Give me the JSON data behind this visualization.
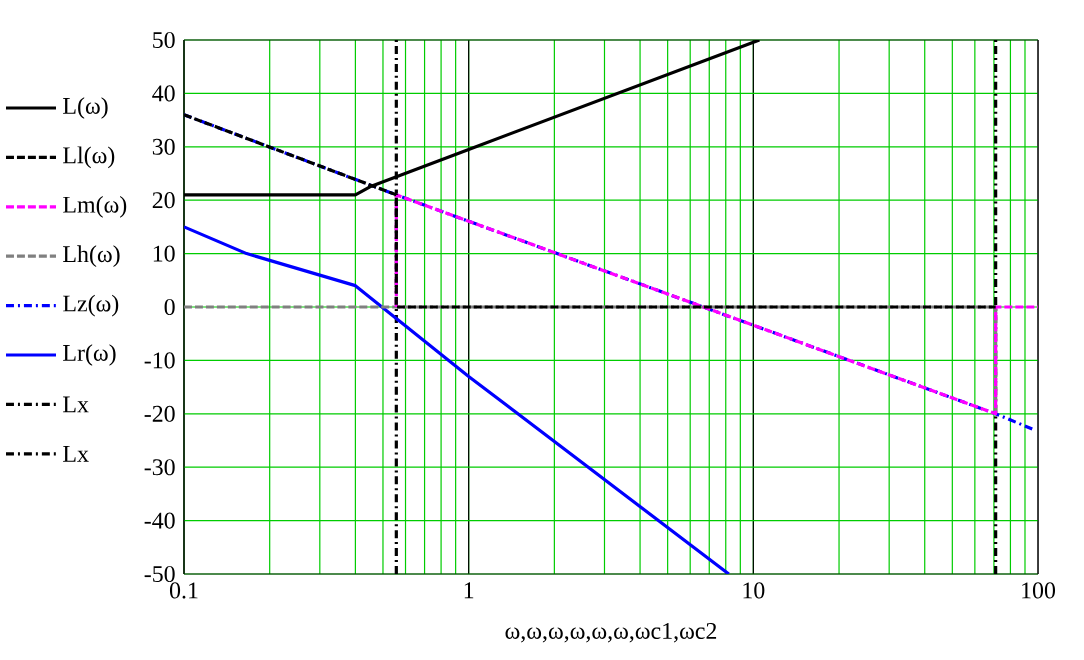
{
  "chart_data": {
    "type": "line",
    "xlabel": "ω,ω,ω,ω,ω,ω,ωc1,ωc2",
    "xlim": [
      0.1,
      100
    ],
    "ylim": [
      -50,
      50
    ],
    "xticks": [
      0.1,
      1,
      10,
      100
    ],
    "yticks": [
      -50,
      -40,
      -30,
      -20,
      -10,
      0,
      10,
      20,
      30,
      40,
      50
    ],
    "log": "x",
    "grid": true,
    "legend": "left",
    "marker": "none",
    "series": [
      {
        "name": "L(ω)",
        "color": "#000000",
        "line_style": "solid",
        "x": [
          0.1,
          0.4,
          0.45,
          1,
          10.5
        ],
        "values": [
          21,
          21,
          22.5,
          29.5,
          50
        ]
      },
      {
        "name": "Ll(ω)",
        "color": "#000000",
        "line_style": "dashed",
        "x": [
          0.1,
          0.557,
          0.557,
          71
        ],
        "values": [
          36,
          21,
          0,
          0
        ]
      },
      {
        "name": "Lm(ω)",
        "color": "#ff00ff",
        "line_style": "dashed",
        "x": [
          0.557,
          0.557,
          71,
          71,
          100
        ],
        "values": [
          0,
          21,
          -20,
          0,
          0
        ]
      },
      {
        "name": "Lh(ω)",
        "color": "#808080",
        "line_style": "dashed",
        "x": [
          0.1,
          71,
          71
        ],
        "values": [
          0,
          0,
          -20
        ]
      },
      {
        "name": "Lz(ω)",
        "color": "#0000ff",
        "line_style": "dashdot",
        "x": [
          0.1,
          0.557,
          71,
          97
        ],
        "values": [
          36,
          21,
          -20,
          -23
        ]
      },
      {
        "name": "Lr(ω)",
        "color": "#0000ff",
        "line_style": "solid",
        "x": [
          0.1,
          0.166,
          0.4,
          1,
          8.2
        ],
        "values": [
          15,
          10,
          4,
          -13,
          -50
        ]
      },
      {
        "name": "Lx",
        "color": "#000000",
        "line_style": "dashdot",
        "x": [
          0.557,
          0.557
        ],
        "values": [
          -50,
          50
        ]
      },
      {
        "name": "Lx",
        "color": "#000000",
        "line_style": "dashdot",
        "x": [
          71,
          71
        ],
        "values": [
          -50,
          50
        ]
      }
    ]
  }
}
